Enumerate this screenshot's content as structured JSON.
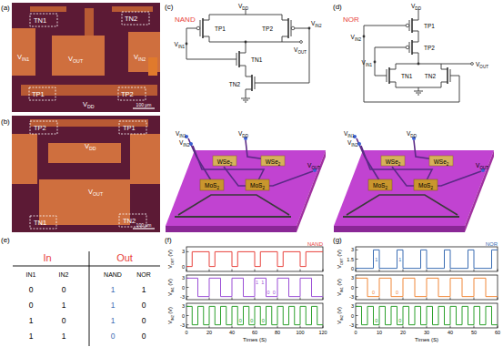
{
  "panel_labels": [
    "(a)",
    "(b)",
    "(c)",
    "(d)",
    "(e)",
    "(f)",
    "(g)"
  ],
  "photos": [
    {
      "labels": [
        "TN1",
        "TN2",
        {
          "text": "V",
          "sub": "IN1"
        },
        {
          "text": "V",
          "sub": "OUT"
        },
        {
          "text": "V",
          "sub": "IN2"
        },
        "TP1",
        {
          "text": "V",
          "sub": "DD"
        },
        "TP2"
      ],
      "scale_bar": "100 μm"
    },
    {
      "labels": [
        "TP2",
        "TP1",
        {
          "text": "V",
          "sub": "DD"
        },
        {
          "text": "V",
          "sub": "OUT"
        },
        "TN1",
        "TN2"
      ],
      "scale_bar": "100 μm"
    }
  ],
  "circuits": [
    {
      "title": "NAND",
      "labels": {
        "vdd": {
          "text": "V",
          "sub": "DD"
        },
        "vin1": {
          "text": "V",
          "sub": "IN1"
        },
        "vin2": {
          "text": "V",
          "sub": "IN2"
        },
        "vout": {
          "text": "V",
          "sub": "OUT"
        },
        "tp1": "TP1",
        "tp2": "TP2",
        "tn1": "TN1",
        "tn2": "TN2"
      },
      "device_labels": [
        {
          "text": "V",
          "sub": "IN1"
        },
        {
          "text": "V",
          "sub": "IN2"
        },
        {
          "text": "V",
          "sub": "DD"
        },
        {
          "text": "WSe",
          "sub": "2"
        },
        {
          "text": "WSe",
          "sub": "2"
        },
        {
          "text": "MoS",
          "sub": "2"
        },
        {
          "text": "MoS",
          "sub": "2"
        },
        {
          "text": "V",
          "sub": "OUT"
        }
      ]
    },
    {
      "title": "NOR",
      "labels": {
        "vdd": {
          "text": "V",
          "sub": "DD"
        },
        "vin1": {
          "text": "V",
          "sub": "IN1"
        },
        "vin2": {
          "text": "V",
          "sub": "IN2"
        },
        "vout": {
          "text": "V",
          "sub": "OUT"
        },
        "tp1": "TP1",
        "tp2": "TP2",
        "tn1": "TN1",
        "tn2": "TN2"
      },
      "device_labels": [
        {
          "text": "V",
          "sub": "IN1"
        },
        {
          "text": "V",
          "sub": "IN2"
        },
        {
          "text": "V",
          "sub": "DD"
        },
        {
          "text": "WSe",
          "sub": "2"
        },
        {
          "text": "WSe",
          "sub": "2"
        },
        {
          "text": "MoS",
          "sub": "2"
        },
        {
          "text": "MoS",
          "sub": "2"
        },
        {
          "text": "V",
          "sub": "OUT"
        }
      ]
    }
  ],
  "table": {
    "groups": [
      "In",
      "Out"
    ],
    "header": [
      "IN1",
      "IN2",
      "NAND",
      "NOR"
    ],
    "rows": [
      [
        0,
        0,
        1,
        1
      ],
      [
        0,
        1,
        1,
        0
      ],
      [
        1,
        0,
        1,
        0
      ],
      [
        1,
        1,
        0,
        0
      ]
    ]
  },
  "chart_data": [
    {
      "type": "line",
      "title": "NAND",
      "line_style": "step",
      "tick_labels": "y",
      "y_label": {
        "text": "V",
        "sub": "OUT",
        "after": " (V)"
      },
      "xlim": [
        0,
        120
      ],
      "xticks": [
        0,
        20,
        40,
        60,
        80,
        100,
        120
      ],
      "ylim": [
        -1,
        4
      ],
      "yticks": [
        0,
        3
      ],
      "x": [
        0,
        5,
        20,
        25,
        40,
        45,
        60,
        65,
        80,
        85,
        100,
        105
      ],
      "series": [
        {
          "color": "#e8423c",
          "values": [
            0,
            3,
            0,
            3,
            0,
            3,
            0,
            3,
            0,
            3,
            0,
            3
          ]
        }
      ]
    },
    {
      "type": "line",
      "line_style": "step",
      "tick_labels": "y",
      "y_label": {
        "text": "V",
        "sub": "IN1",
        "after": " (V)"
      },
      "xlim": [
        0,
        120
      ],
      "xticks": [
        0,
        20,
        40,
        60,
        80,
        100,
        120
      ],
      "ylim": [
        -4,
        4
      ],
      "yticks": [
        -3,
        0,
        3
      ],
      "x": [
        0,
        10,
        20,
        30,
        40,
        50,
        60,
        70,
        80,
        90,
        100,
        110
      ],
      "series": [
        {
          "color": "#9b4fd6",
          "values": [
            3,
            -3,
            3,
            -3,
            3,
            -3,
            3,
            -3,
            3,
            -3,
            3,
            -3
          ]
        }
      ],
      "annotations": [
        {
          "text": "1",
          "x": 62,
          "y": 1.5
        },
        {
          "text": "1",
          "x": 67,
          "y": 1.5
        },
        {
          "text": "0",
          "x": 72,
          "y": -1.5
        },
        {
          "text": "0",
          "x": 77,
          "y": -1.5
        }
      ]
    },
    {
      "type": "line",
      "line_style": "step",
      "y_label": {
        "text": "V",
        "sub": "IN2",
        "after": " (V)"
      },
      "x_label": "Times (S)",
      "xlim": [
        0,
        120
      ],
      "xticks": [
        0,
        20,
        40,
        60,
        80,
        100,
        120
      ],
      "ylim": [
        -4,
        4
      ],
      "yticks": [
        -3,
        0,
        3
      ],
      "x": [
        0,
        5,
        10,
        15,
        20,
        25,
        30,
        35,
        40,
        45,
        50,
        55,
        60,
        65,
        70,
        75,
        80,
        85,
        90,
        95,
        100,
        105,
        110,
        115
      ],
      "series": [
        {
          "color": "#2ca02c",
          "values": [
            3,
            -3,
            3,
            -3,
            3,
            -3,
            3,
            -3,
            3,
            -3,
            3,
            -3,
            3,
            -3,
            3,
            -3,
            3,
            -3,
            3,
            -3,
            3,
            -3,
            3,
            -3
          ]
        }
      ],
      "annotations": [
        {
          "text": "0",
          "x": 47.5,
          "y": -1.5
        },
        {
          "text": "0",
          "x": 57.5,
          "y": -1.5
        },
        {
          "text": "0",
          "x": 67.5,
          "y": -1.5
        }
      ]
    },
    {
      "type": "line",
      "title": "NOR",
      "line_style": "step",
      "tick_labels": "y",
      "y_label": {
        "text": "V",
        "sub": "OUT",
        "after": " (V)"
      },
      "xlim": [
        0,
        60
      ],
      "xticks": [
        0,
        10,
        20,
        30,
        40,
        50,
        60
      ],
      "ylim": [
        -0.5,
        3.5
      ],
      "yticks": [
        0,
        1.5,
        3
      ],
      "x": [
        0,
        7.5,
        10,
        17.5,
        20,
        27.5,
        30,
        37.5,
        40,
        47.5,
        50,
        57.5
      ],
      "series": [
        {
          "color": "#3b6db3",
          "values": [
            0,
            3,
            0,
            3,
            0,
            3,
            0,
            3,
            0,
            3,
            0,
            3
          ]
        }
      ],
      "annotations": [
        {
          "text": "1",
          "x": 8.75,
          "y": 1.5
        },
        {
          "text": "1",
          "x": 18.75,
          "y": 1.5
        }
      ]
    },
    {
      "type": "line",
      "line_style": "step",
      "tick_labels": "y",
      "y_label": {
        "text": "V",
        "sub": "IN1",
        "after": " (V)"
      },
      "xlim": [
        0,
        60
      ],
      "xticks": [
        0,
        10,
        20,
        30,
        40,
        50,
        60
      ],
      "ylim": [
        -4,
        4
      ],
      "yticks": [
        -3,
        0,
        3
      ],
      "x": [
        0,
        5,
        10,
        15,
        20,
        25,
        30,
        35,
        40,
        45,
        50,
        55
      ],
      "series": [
        {
          "color": "#f0883a",
          "values": [
            3,
            -3,
            3,
            -3,
            3,
            -3,
            3,
            -3,
            3,
            -3,
            3,
            -3
          ]
        }
      ],
      "annotations": [
        {
          "text": "0",
          "x": 7.5,
          "y": -1.5
        },
        {
          "text": "0",
          "x": 17.5,
          "y": -1.5
        }
      ]
    },
    {
      "type": "line",
      "line_style": "step",
      "y_label": {
        "text": "V",
        "sub": "IN2",
        "after": " (V)"
      },
      "x_label": "Times (S)",
      "xlim": [
        0,
        60
      ],
      "xticks": [
        0,
        10,
        20,
        30,
        40,
        50,
        60
      ],
      "ylim": [
        -4,
        4
      ],
      "yticks": [
        -3,
        0,
        3
      ],
      "x": [
        0,
        2.5,
        5,
        7.5,
        10,
        12.5,
        15,
        17.5,
        20,
        22.5,
        25,
        27.5,
        30,
        32.5,
        35,
        37.5,
        40,
        42.5,
        45,
        47.5,
        50,
        52.5,
        55,
        57.5
      ],
      "series": [
        {
          "color": "#2ca02c",
          "values": [
            3,
            -3,
            3,
            -3,
            3,
            -3,
            3,
            -3,
            3,
            -3,
            3,
            -3,
            3,
            -3,
            3,
            -3,
            3,
            -3,
            3,
            -3,
            3,
            -3,
            3,
            -3
          ]
        }
      ],
      "annotations": [
        {
          "text": "0",
          "x": 8.75,
          "y": -1.5
        },
        {
          "text": "0",
          "x": 18.75,
          "y": -1.5
        }
      ]
    }
  ]
}
